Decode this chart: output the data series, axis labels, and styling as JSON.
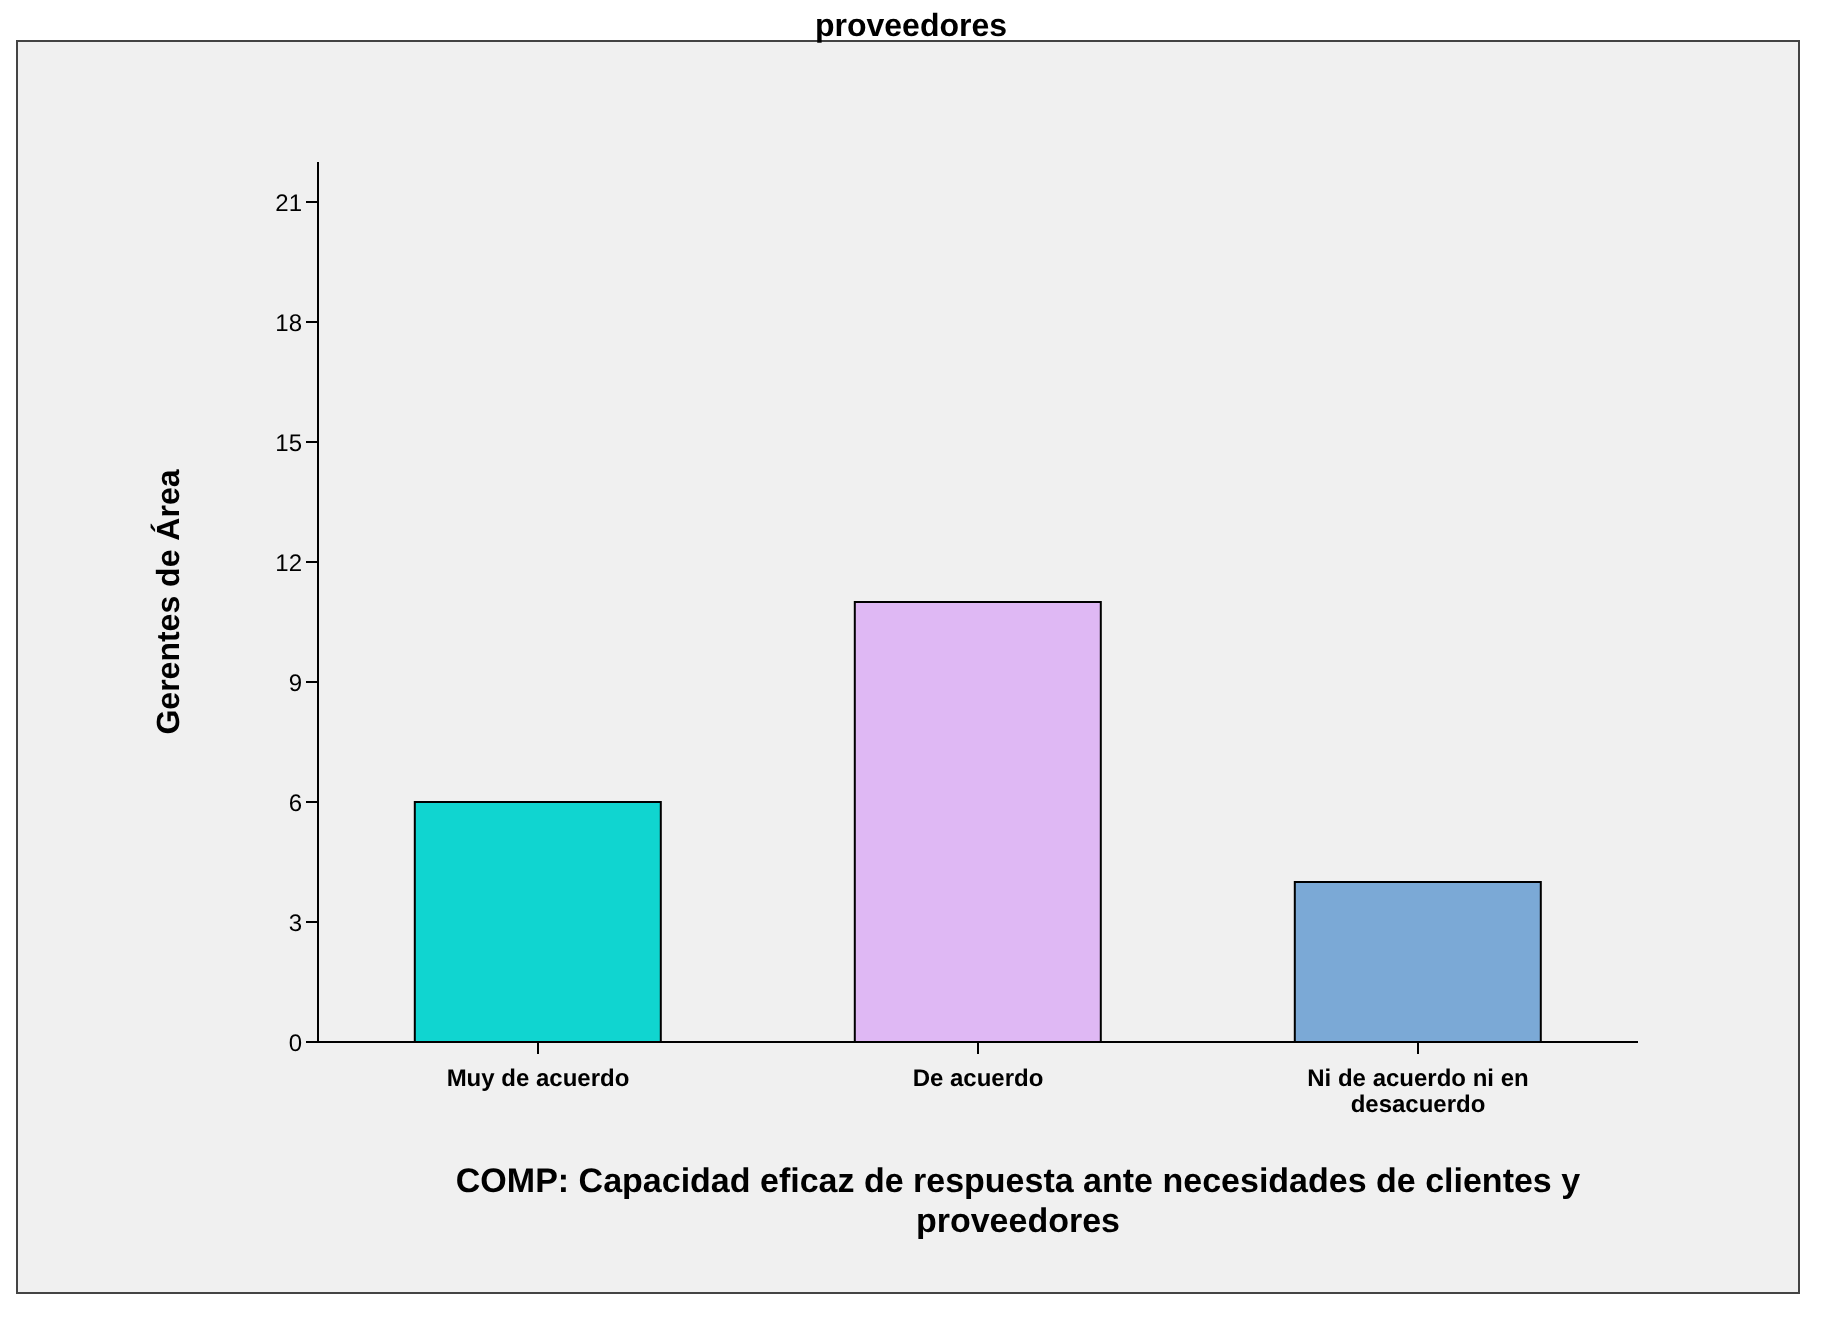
{
  "chart_data": {
    "type": "bar",
    "title": "proveedores",
    "xlabel": "COMP: Capacidad eficaz de respuesta ante necesidades de clientes y proveedores",
    "ylabel": "Gerentes de Área",
    "categories": [
      "Muy de acuerdo",
      "De acuerdo",
      "Ni de acuerdo ni en desacuerdo"
    ],
    "values": [
      6,
      11,
      4
    ],
    "colors": [
      "#10d5d0",
      "#dfb8f4",
      "#7ba9d6"
    ],
    "ylim": [
      0,
      22
    ],
    "yticks": [
      0,
      3,
      6,
      9,
      12,
      15,
      18,
      21
    ],
    "grid": false,
    "legend": false
  }
}
